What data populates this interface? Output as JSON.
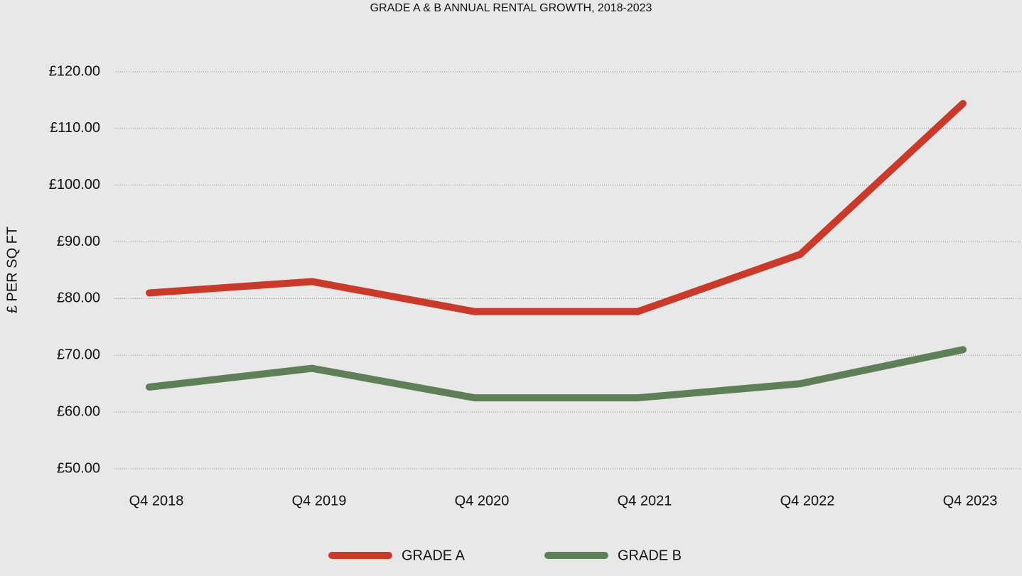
{
  "chart_data": {
    "type": "line",
    "title": "GRADE A & B ANNUAL RENTAL GROWTH, 2018-2023",
    "y_label": "£ PER SQ FT",
    "categories": [
      "Q4 2018",
      "Q4 2019",
      "Q4 2020",
      "Q4 2021",
      "Q4 2022",
      "Q4 2023"
    ],
    "series": [
      {
        "name": "GRADE A",
        "color": "#c93a2b",
        "values": [
          81.0,
          83.0,
          77.7,
          77.7,
          87.8,
          114.4
        ]
      },
      {
        "name": "GRADE B",
        "color": "#5e7f58",
        "values": [
          64.4,
          67.7,
          62.5,
          62.5,
          65.0,
          71.0
        ]
      }
    ],
    "ylim": [
      50,
      120
    ],
    "yticks": [
      {
        "value": 50,
        "label": "£50.00"
      },
      {
        "value": 60,
        "label": "£60.00"
      },
      {
        "value": 70,
        "label": "£70.00"
      },
      {
        "value": 80,
        "label": "£80.00"
      },
      {
        "value": 90,
        "label": "£90.00"
      },
      {
        "value": 100,
        "label": "£100.00"
      },
      {
        "value": 110,
        "label": "£110.00"
      },
      {
        "value": 120,
        "label": "£120.00"
      }
    ],
    "grid": true,
    "legend": "bottom"
  }
}
